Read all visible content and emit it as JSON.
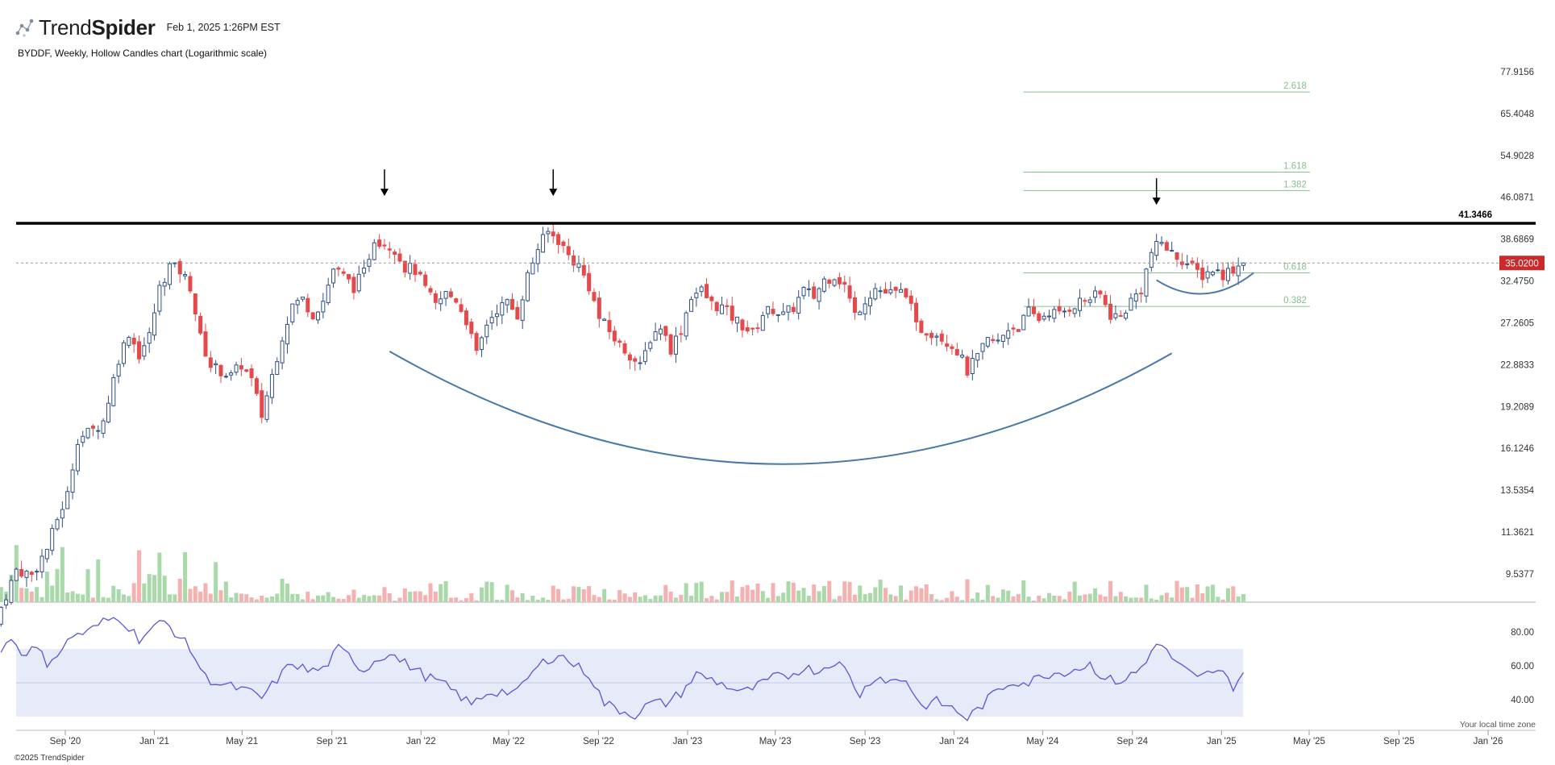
{
  "header": {
    "brand_light": "Trend",
    "brand_bold": "Spider",
    "timestamp": "Feb 1, 2025 1:26PM EST",
    "subtitle": "BYDDF, Weekly, Hollow Candles chart (Logarithmic scale)"
  },
  "footer": {
    "copyright": "©2025 TrendSpider",
    "timezone_note": "Your local time zone"
  },
  "colors": {
    "up": "#2f4f86",
    "down": "#e5494a",
    "vol_up": "#a9d8a9",
    "vol_down": "#f5b0b0",
    "fib": "#86c08d",
    "rsi_line": "#5757d6",
    "rsi_band": "#e7eaf8",
    "arc": "#4a78a8",
    "resistance": "#000000",
    "price_tag": "#cc2a2a"
  },
  "chart_data": {
    "type": "candlestick",
    "symbol": "BYDDF",
    "interval": "Weekly",
    "scale": "log",
    "y_ticks": [
      77.9156,
      65.4048,
      54.9028,
      46.0871,
      38.6869,
      32.475,
      27.2605,
      22.8833,
      19.2089,
      16.1246,
      13.5354,
      11.3621,
      9.5377
    ],
    "y_tick_labels": [
      "77.9156",
      "65.4048",
      "54.9028",
      "46.0871",
      "38.6869",
      "32.4750",
      "27.2605",
      "22.8833",
      "19.2089",
      "16.1246",
      "13.5354",
      "11.3621",
      "9.5377"
    ],
    "x_ticks": [
      {
        "label": "Sep '20",
        "date": "2020-09-01"
      },
      {
        "label": "Jan '21",
        "date": "2021-01-01"
      },
      {
        "label": "May '21",
        "date": "2021-05-01"
      },
      {
        "label": "Sep '21",
        "date": "2021-09-01"
      },
      {
        "label": "Jan '22",
        "date": "2022-01-01"
      },
      {
        "label": "May '22",
        "date": "2022-05-01"
      },
      {
        "label": "Sep '22",
        "date": "2022-09-01"
      },
      {
        "label": "Jan '23",
        "date": "2023-01-01"
      },
      {
        "label": "May '23",
        "date": "2023-05-01"
      },
      {
        "label": "Sep '23",
        "date": "2023-09-01"
      },
      {
        "label": "Jan '24",
        "date": "2024-01-01"
      },
      {
        "label": "May '24",
        "date": "2024-05-01"
      },
      {
        "label": "Sep '24",
        "date": "2024-09-01"
      },
      {
        "label": "Jan '25",
        "date": "2025-01-01"
      },
      {
        "label": "May '25",
        "date": "2025-05-01"
      },
      {
        "label": "Sep '25",
        "date": "2025-09-01"
      },
      {
        "label": "Jan '26",
        "date": "2026-01-01"
      }
    ],
    "close_path": [
      [
        "2020-06-05",
        8.3
      ],
      [
        "2020-06-26",
        9.7
      ],
      [
        "2020-07-17",
        9.5
      ],
      [
        "2020-08-07",
        10.6
      ],
      [
        "2020-08-21",
        12.0
      ],
      [
        "2020-09-04",
        13.3
      ],
      [
        "2020-09-18",
        16.8
      ],
      [
        "2020-10-09",
        17.4
      ],
      [
        "2020-10-23",
        18.1
      ],
      [
        "2020-11-13",
        23.5
      ],
      [
        "2020-11-27",
        26.2
      ],
      [
        "2020-12-11",
        23.9
      ],
      [
        "2020-12-25",
        25.8
      ],
      [
        "2021-01-08",
        31.5
      ],
      [
        "2021-01-22",
        34.6
      ],
      [
        "2021-02-05",
        33.9
      ],
      [
        "2021-02-19",
        31.8
      ],
      [
        "2021-03-05",
        25.6
      ],
      [
        "2021-03-19",
        22.8
      ],
      [
        "2021-04-02",
        22.3
      ],
      [
        "2021-04-16",
        21.8
      ],
      [
        "2021-04-30",
        22.9
      ],
      [
        "2021-05-14",
        21.4
      ],
      [
        "2021-05-28",
        18.5
      ],
      [
        "2021-06-11",
        21.9
      ],
      [
        "2021-06-25",
        25.8
      ],
      [
        "2021-07-09",
        29.4
      ],
      [
        "2021-07-23",
        30.1
      ],
      [
        "2021-08-06",
        28.3
      ],
      [
        "2021-08-20",
        29.9
      ],
      [
        "2021-09-03",
        34.2
      ],
      [
        "2021-09-17",
        33.1
      ],
      [
        "2021-10-01",
        31.7
      ],
      [
        "2021-10-15",
        33.6
      ],
      [
        "2021-10-29",
        38.9
      ],
      [
        "2021-11-12",
        38.1
      ],
      [
        "2021-11-26",
        37.2
      ],
      [
        "2021-12-10",
        34.4
      ],
      [
        "2021-12-24",
        34.0
      ],
      [
        "2022-01-07",
        31.4
      ],
      [
        "2022-01-21",
        29.3
      ],
      [
        "2022-02-04",
        30.8
      ],
      [
        "2022-02-18",
        30.1
      ],
      [
        "2022-03-04",
        27.6
      ],
      [
        "2022-03-18",
        23.8
      ],
      [
        "2022-04-01",
        27.2
      ],
      [
        "2022-04-15",
        28.9
      ],
      [
        "2022-04-29",
        29.6
      ],
      [
        "2022-05-13",
        28.2
      ],
      [
        "2022-05-27",
        33.2
      ],
      [
        "2022-06-10",
        37.3
      ],
      [
        "2022-06-24",
        39.8
      ],
      [
        "2022-07-08",
        38.6
      ],
      [
        "2022-07-22",
        36.1
      ],
      [
        "2022-08-05",
        34.6
      ],
      [
        "2022-08-19",
        31.8
      ],
      [
        "2022-09-02",
        27.8
      ],
      [
        "2022-09-16",
        26.3
      ],
      [
        "2022-09-30",
        24.8
      ],
      [
        "2022-10-14",
        23.9
      ],
      [
        "2022-10-28",
        22.6
      ],
      [
        "2022-11-11",
        25.6
      ],
      [
        "2022-11-25",
        26.9
      ],
      [
        "2022-12-09",
        24.5
      ],
      [
        "2022-12-23",
        26.5
      ],
      [
        "2023-01-06",
        30.6
      ],
      [
        "2023-01-20",
        31.2
      ],
      [
        "2023-02-03",
        29.5
      ],
      [
        "2023-02-17",
        29.1
      ],
      [
        "2023-03-03",
        27.9
      ],
      [
        "2023-03-17",
        27.0
      ],
      [
        "2023-03-31",
        26.1
      ],
      [
        "2023-04-14",
        28.3
      ],
      [
        "2023-04-28",
        28.9
      ],
      [
        "2023-05-12",
        28.1
      ],
      [
        "2023-05-26",
        29.1
      ],
      [
        "2023-06-09",
        31.2
      ],
      [
        "2023-06-23",
        30.4
      ],
      [
        "2023-07-07",
        32.6
      ],
      [
        "2023-07-21",
        33.3
      ],
      [
        "2023-08-04",
        31.9
      ],
      [
        "2023-08-18",
        28.2
      ],
      [
        "2023-09-01",
        30.1
      ],
      [
        "2023-09-15",
        31.5
      ],
      [
        "2023-09-29",
        30.9
      ],
      [
        "2023-10-13",
        30.8
      ],
      [
        "2023-10-27",
        31.1
      ],
      [
        "2023-11-10",
        26.8
      ],
      [
        "2023-11-24",
        26.4
      ],
      [
        "2023-12-08",
        26.1
      ],
      [
        "2023-12-22",
        25.3
      ],
      [
        "2024-01-05",
        24.3
      ],
      [
        "2024-01-19",
        22.3
      ],
      [
        "2024-02-02",
        23.6
      ],
      [
        "2024-02-16",
        25.3
      ],
      [
        "2024-03-01",
        25.1
      ],
      [
        "2024-03-15",
        26.7
      ],
      [
        "2024-03-29",
        26.8
      ],
      [
        "2024-04-12",
        28.5
      ],
      [
        "2024-04-26",
        27.7
      ],
      [
        "2024-05-10",
        28.6
      ],
      [
        "2024-05-24",
        28.2
      ],
      [
        "2024-06-07",
        29.1
      ],
      [
        "2024-06-21",
        29.8
      ],
      [
        "2024-07-05",
        30.2
      ],
      [
        "2024-07-19",
        30.6
      ],
      [
        "2024-08-02",
        28.2
      ],
      [
        "2024-08-16",
        27.9
      ],
      [
        "2024-08-30",
        29.9
      ],
      [
        "2024-09-13",
        31.4
      ],
      [
        "2024-09-27",
        36.6
      ],
      [
        "2024-10-11",
        38.2
      ],
      [
        "2024-10-25",
        36.4
      ],
      [
        "2024-11-08",
        35.6
      ],
      [
        "2024-11-22",
        34.2
      ],
      [
        "2024-12-06",
        33.3
      ],
      [
        "2024-12-20",
        34.1
      ],
      [
        "2025-01-03",
        33.4
      ],
      [
        "2025-01-17",
        34.2
      ],
      [
        "2025-01-31",
        35.02
      ]
    ],
    "last_price": 35.02,
    "last_price_label": "35.0200",
    "resistance": {
      "value": 41.3466,
      "label": "41.3466"
    },
    "fib_levels": [
      {
        "ratio": "2.618",
        "value": 71.6
      },
      {
        "ratio": "1.618",
        "value": 51.2
      },
      {
        "ratio": "1.382",
        "value": 47.4
      },
      {
        "ratio": "0.618",
        "value": 33.6
      },
      {
        "ratio": "0.382",
        "value": 29.2
      }
    ],
    "fib_start_date": "2024-04-05",
    "fib_end_date": "2025-05-02",
    "arrows": [
      {
        "date": "2021-11-12",
        "value": 46.5
      },
      {
        "date": "2022-07-01",
        "value": 46.5
      },
      {
        "date": "2024-10-04",
        "value": 44.8
      }
    ],
    "big_arc": {
      "start_date": "2021-11-19",
      "end_date": "2024-10-25",
      "start_value": 24.2,
      "bottom_value": 15.1,
      "end_value": 24.0
    },
    "small_arc": {
      "start_date": "2024-10-04",
      "end_date": "2025-02-14",
      "start_value": 32.6,
      "bottom_value": 30.8,
      "end_value": 33.6
    },
    "rsi": {
      "ticks": [
        80,
        60,
        40
      ],
      "tick_labels": [
        "80.00",
        "60.00",
        "40.00"
      ],
      "band": [
        30,
        70
      ],
      "mid": 50,
      "values": [
        [
          "2020-06-05",
          68
        ],
        [
          "2020-06-19",
          77
        ],
        [
          "2020-07-03",
          68
        ],
        [
          "2020-07-24",
          70
        ],
        [
          "2020-08-07",
          62
        ],
        [
          "2020-08-28",
          70
        ],
        [
          "2020-09-11",
          78
        ],
        [
          "2020-10-02",
          80
        ],
        [
          "2020-10-23",
          86
        ],
        [
          "2020-11-13",
          89
        ],
        [
          "2020-11-27",
          83
        ],
        [
          "2020-12-11",
          76
        ],
        [
          "2021-01-01",
          83
        ],
        [
          "2021-01-15",
          86
        ],
        [
          "2021-02-05",
          77
        ],
        [
          "2021-02-19",
          70
        ],
        [
          "2021-03-12",
          53
        ],
        [
          "2021-04-02",
          49
        ],
        [
          "2021-04-23",
          47
        ],
        [
          "2021-05-14",
          44
        ],
        [
          "2021-05-28",
          41
        ],
        [
          "2021-06-18",
          52
        ],
        [
          "2021-07-09",
          62
        ],
        [
          "2021-07-30",
          57
        ],
        [
          "2021-08-20",
          58
        ],
        [
          "2021-09-10",
          70
        ],
        [
          "2021-09-24",
          66
        ],
        [
          "2021-10-15",
          57
        ],
        [
          "2021-10-29",
          63
        ],
        [
          "2021-11-19",
          68
        ],
        [
          "2021-12-03",
          63
        ],
        [
          "2021-12-17",
          60
        ],
        [
          "2022-01-07",
          54
        ],
        [
          "2022-01-28",
          50
        ],
        [
          "2022-02-18",
          44
        ],
        [
          "2022-03-11",
          37
        ],
        [
          "2022-04-01",
          44
        ],
        [
          "2022-04-22",
          45
        ],
        [
          "2022-05-13",
          44
        ],
        [
          "2022-05-27",
          53
        ],
        [
          "2022-06-17",
          62
        ],
        [
          "2022-07-08",
          67
        ],
        [
          "2022-07-29",
          61
        ],
        [
          "2022-08-19",
          55
        ],
        [
          "2022-09-09",
          38
        ],
        [
          "2022-09-30",
          34
        ],
        [
          "2022-10-21",
          31
        ],
        [
          "2022-11-11",
          38
        ],
        [
          "2022-12-02",
          38
        ],
        [
          "2022-12-23",
          44
        ],
        [
          "2023-01-13",
          55
        ],
        [
          "2023-02-03",
          52
        ],
        [
          "2023-02-24",
          48
        ],
        [
          "2023-03-17",
          44
        ],
        [
          "2023-04-07",
          48
        ],
        [
          "2023-04-28",
          53
        ],
        [
          "2023-05-19",
          54
        ],
        [
          "2023-06-09",
          59
        ],
        [
          "2023-06-30",
          57
        ],
        [
          "2023-07-21",
          63
        ],
        [
          "2023-08-04",
          58
        ],
        [
          "2023-08-25",
          43
        ],
        [
          "2023-09-15",
          54
        ],
        [
          "2023-10-06",
          51
        ],
        [
          "2023-10-27",
          52
        ],
        [
          "2023-11-17",
          36
        ],
        [
          "2023-12-08",
          39
        ],
        [
          "2023-12-29",
          35
        ],
        [
          "2024-01-19",
          29
        ],
        [
          "2024-02-09",
          37
        ],
        [
          "2024-03-01",
          46
        ],
        [
          "2024-03-22",
          51
        ],
        [
          "2024-04-12",
          50
        ],
        [
          "2024-05-03",
          55
        ],
        [
          "2024-05-24",
          56
        ],
        [
          "2024-06-14",
          58
        ],
        [
          "2024-07-05",
          61
        ],
        [
          "2024-07-26",
          52
        ],
        [
          "2024-08-16",
          51
        ],
        [
          "2024-09-06",
          56
        ],
        [
          "2024-09-20",
          62
        ],
        [
          "2024-10-04",
          75
        ],
        [
          "2024-10-18",
          68
        ],
        [
          "2024-11-08",
          59
        ],
        [
          "2024-11-29",
          52
        ],
        [
          "2024-12-20",
          57
        ],
        [
          "2025-01-03",
          55
        ],
        [
          "2025-01-17",
          48
        ],
        [
          "2025-01-31",
          56
        ]
      ]
    }
  }
}
